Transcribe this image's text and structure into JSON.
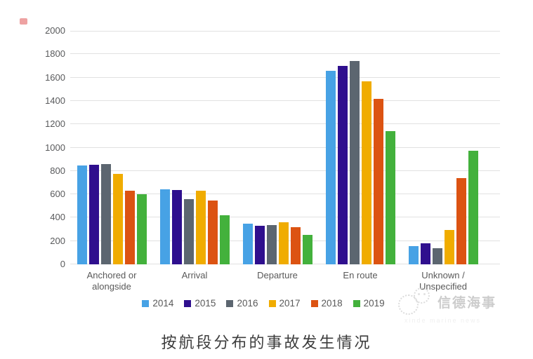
{
  "decoration": {
    "red_mark_color": "#e05555"
  },
  "watermark": {
    "brand": "信德海事",
    "sub": "xinde marine news"
  },
  "caption": {
    "text": "按航段分布的事故发生情况"
  },
  "chart_data": {
    "type": "bar",
    "title": "按航段分布的事故发生情况",
    "categories": [
      "Anchored or\nalongside",
      "Arrival",
      "Departure",
      "En route",
      "Unknown /\nUnspecified"
    ],
    "series": [
      {
        "name": "2014",
        "color": "#47a2e5",
        "values": [
          845,
          640,
          350,
          1655,
          155
        ]
      },
      {
        "name": "2015",
        "color": "#2f0f8e",
        "values": [
          850,
          635,
          330,
          1700,
          180
        ]
      },
      {
        "name": "2016",
        "color": "#5c6670",
        "values": [
          860,
          560,
          335,
          1740,
          140
        ]
      },
      {
        "name": "2017",
        "color": "#f0ac00",
        "values": [
          775,
          630,
          360,
          1565,
          295
        ]
      },
      {
        "name": "2018",
        "color": "#dc5312",
        "values": [
          630,
          545,
          320,
          1420,
          740
        ]
      },
      {
        "name": "2019",
        "color": "#43b13c",
        "values": [
          600,
          420,
          255,
          1140,
          975
        ]
      }
    ],
    "xlabel": "",
    "ylabel": "",
    "ylim": [
      0,
      2000
    ],
    "yticks": [
      0,
      200,
      400,
      600,
      800,
      1000,
      1200,
      1400,
      1600,
      1800,
      2000
    ],
    "grid": true,
    "legend_position": "bottom"
  }
}
